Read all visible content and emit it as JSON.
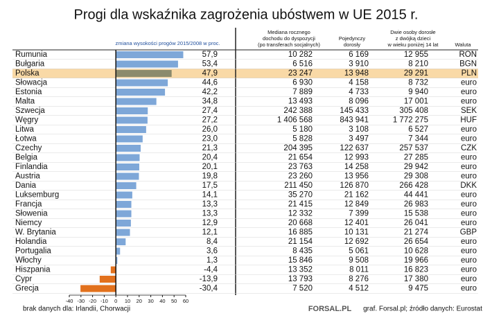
{
  "chart_data": {
    "type": "bar",
    "orientation": "horizontal",
    "title": "Progi dla wskaźnika zagrożenia ubóstwem w UE 2015 r.",
    "value_header": "zmiana wysokości progów 2015/2008 w proc.",
    "categories": [
      "Rumunia",
      "Bułgaria",
      "Polska",
      "Słowacja",
      "Estonia",
      "Malta",
      "Szwecja",
      "Węgry",
      "Litwa",
      "Łotwa",
      "Czechy",
      "Belgia",
      "Finlandia",
      "Austria",
      "Dania",
      "Luksemburg",
      "Francja",
      "Słowenia",
      "Niemcy",
      "W. Brytania",
      "Holandia",
      "Portugalia",
      "Włochy",
      "Hiszpania",
      "Cypr",
      "Grecja"
    ],
    "values": [
      57.9,
      53.4,
      47.9,
      44.6,
      42.2,
      34.8,
      27.4,
      27.2,
      26.0,
      23.0,
      21.3,
      20.4,
      20.1,
      19.8,
      17.5,
      14.1,
      13.3,
      13.3,
      12.9,
      12.1,
      8.4,
      3.6,
      1.3,
      -4.4,
      -13.9,
      -30.4
    ],
    "value_labels": [
      "57,9",
      "53,4",
      "47,9",
      "44,6",
      "42,2",
      "34,8",
      "27,4",
      "27,2",
      "26,0",
      "23,0",
      "21,3",
      "20,4",
      "20,1",
      "19,8",
      "17,5",
      "14,1",
      "13,3",
      "13,3",
      "12,9",
      "12,1",
      "8,4",
      "3,6",
      "1,3",
      "-4,4",
      "-13,9",
      "-30,4"
    ],
    "color": "#7ea7d8",
    "negative_color": "#e2711d",
    "highlight_index": 2,
    "highlight_bar_color": "#8b8a6c",
    "highlight_row_color": "#f9d9a6",
    "xlim": [
      -40,
      60
    ],
    "xticks": [
      -40,
      -30,
      -20,
      -10,
      0,
      10,
      20,
      30,
      40,
      50,
      60
    ],
    "table": {
      "headers": [
        [
          "Mediana rocznego",
          "dochodu do dyspozycji",
          "(po transferach socjalnych)"
        ],
        [
          "Pojedynczy",
          "dorosły"
        ],
        [
          "Dwie osoby dorosłe",
          "z dwójką dzieci",
          "w wieku poniżej 14 lat"
        ],
        [
          "Waluta"
        ]
      ],
      "rows": [
        [
          "10 282",
          "6 169",
          "12 955",
          "RON"
        ],
        [
          "6 516",
          "3 910",
          "8 210",
          "BGN"
        ],
        [
          "23 247",
          "13 948",
          "29 291",
          "PLN"
        ],
        [
          "6 930",
          "4 158",
          "8 732",
          "euro"
        ],
        [
          "7 889",
          "4 733",
          "9 940",
          "euro"
        ],
        [
          "13 493",
          "8 096",
          "17 001",
          "euro"
        ],
        [
          "242 388",
          "145 433",
          "305 408",
          "SEK"
        ],
        [
          "1 406 568",
          "843 941",
          "1 772 275",
          "HUF"
        ],
        [
          "5 180",
          "3 108",
          "6 527",
          "euro"
        ],
        [
          "5 828",
          "3 497",
          "7 344",
          "euro"
        ],
        [
          "204 395",
          "122 637",
          "257 537",
          "CZK"
        ],
        [
          "21 654",
          "12 993",
          "27 285",
          "euro"
        ],
        [
          "23 763",
          "14 258",
          "29 942",
          "euro"
        ],
        [
          "23 260",
          "13 956",
          "29 308",
          "euro"
        ],
        [
          "211 450",
          "126 870",
          "266 428",
          "DKK"
        ],
        [
          "35 270",
          "21 162",
          "44 441",
          "euro"
        ],
        [
          "21 415",
          "12 849",
          "26 983",
          "euro"
        ],
        [
          "12 332",
          "7 399",
          "15 538",
          "euro"
        ],
        [
          "20 668",
          "12 401",
          "26 041",
          "euro"
        ],
        [
          "16 885",
          "10 131",
          "21 274",
          "GBP"
        ],
        [
          "21 154",
          "12 692",
          "26 654",
          "euro"
        ],
        [
          "8 435",
          "5 061",
          "10 628",
          "euro"
        ],
        [
          "15 846",
          "9 508",
          "19 966",
          "euro"
        ],
        [
          "13 352",
          "8 011",
          "16 823",
          "euro"
        ],
        [
          "13 793",
          "8 276",
          "17 380",
          "euro"
        ],
        [
          "7 520",
          "4 512",
          "9 475",
          "euro"
        ]
      ]
    },
    "note": "brak danych dla: Irlandii, Chorwacji",
    "logo": "FORSAL.PL",
    "source": "graf. Forsal.pl; źródło danych: Eurostat"
  }
}
